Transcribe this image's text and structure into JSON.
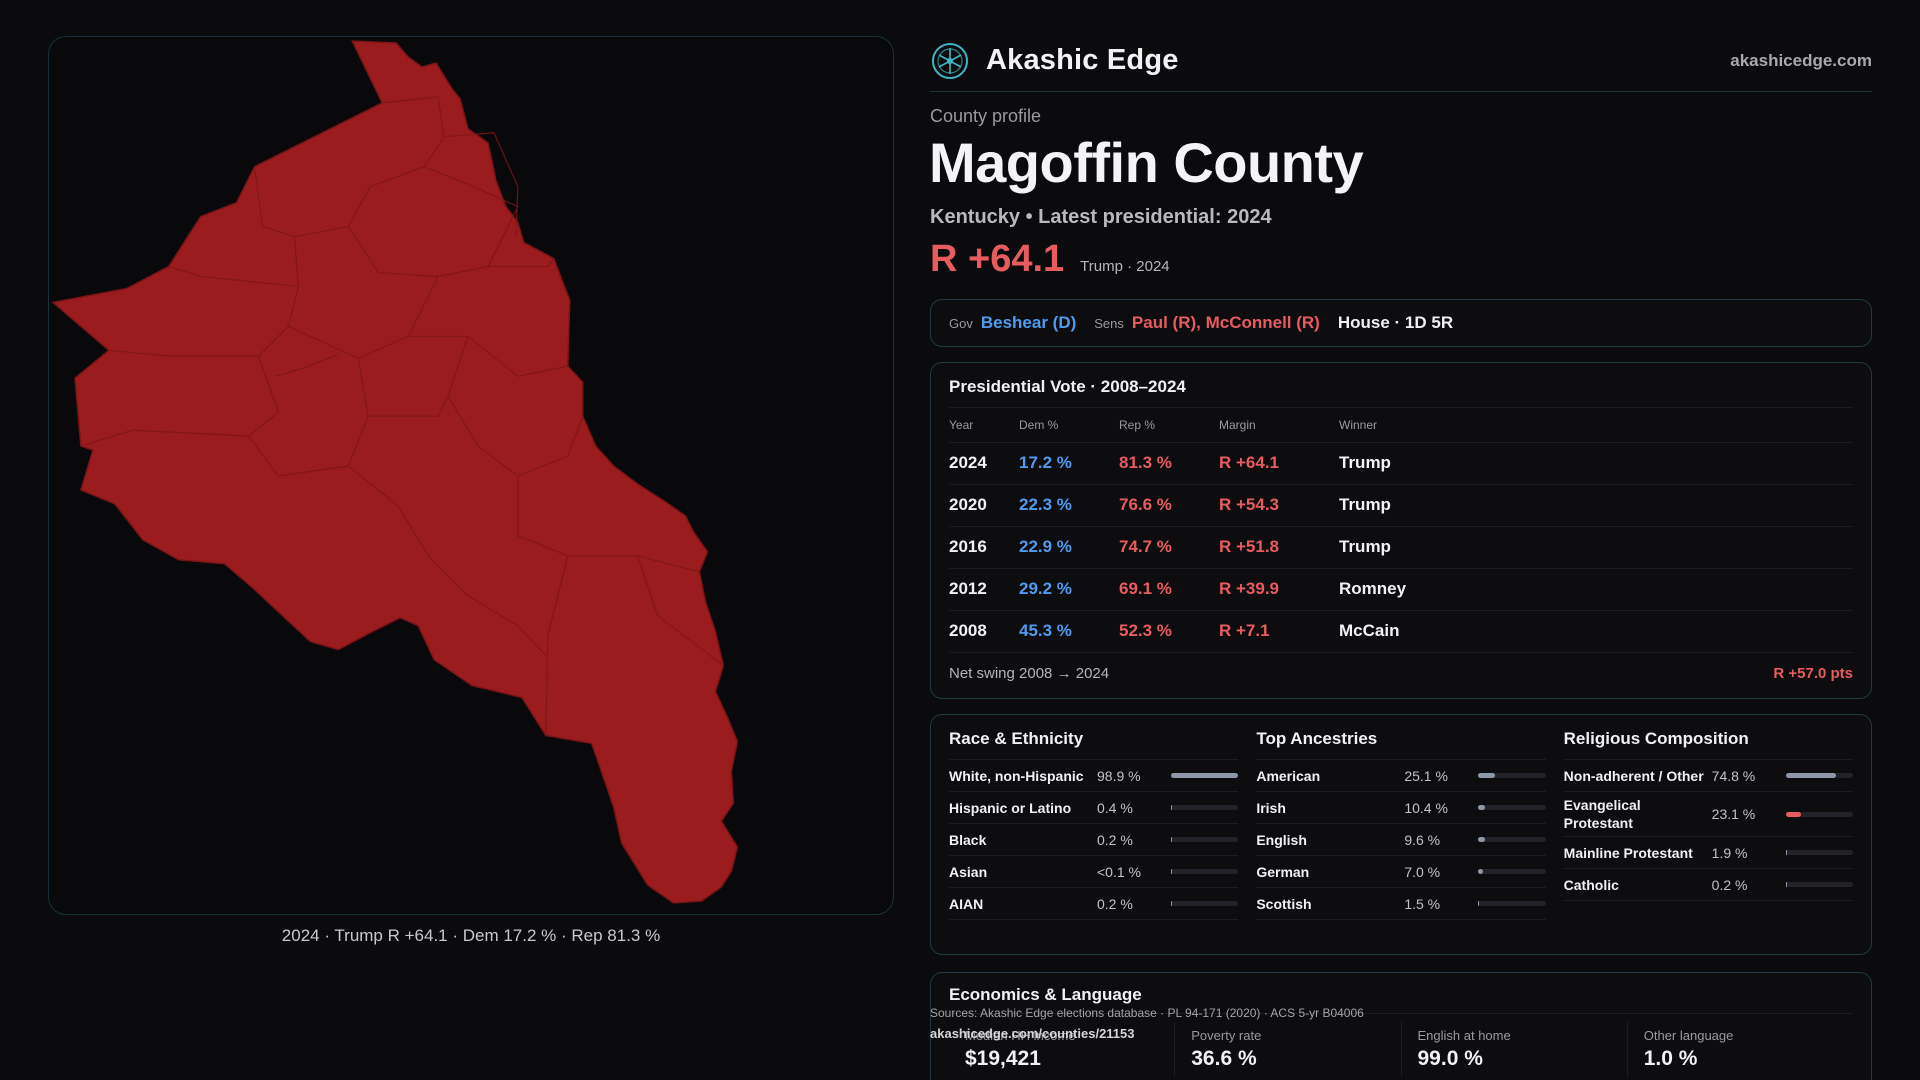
{
  "map": {
    "caption": "2024 · Trump R +64.1 · Dem 17.2 % · Rep 81.3 %",
    "fill_color": "#9b1c1f",
    "border_color": "#7a1416"
  },
  "brand": {
    "name": "Akashic Edge",
    "domain": "akashicedge.com",
    "logo_icon": "akashic-edge-logo-icon"
  },
  "profile": {
    "kicker": "County profile",
    "title": "Magoffin County",
    "subtitle": "Kentucky • Latest presidential: 2024",
    "margin": "R +64.1",
    "margin_detail": "Trump · 2024"
  },
  "officials": {
    "gov_label": "Gov",
    "gov_value": "Beshear (D)",
    "sens_label": "Sens",
    "sens_value": "Paul (R), McConnell (R)",
    "house": "House · 1D 5R"
  },
  "presidential": {
    "title": "Presidential Vote · 2008–2024",
    "columns": [
      "Year",
      "Dem %",
      "Rep %",
      "Margin",
      "Winner"
    ],
    "rows": [
      {
        "year": "2024",
        "dem": "17.2 %",
        "rep": "81.3 %",
        "margin": "R +64.1",
        "winner": "Trump"
      },
      {
        "year": "2020",
        "dem": "22.3 %",
        "rep": "76.6 %",
        "margin": "R +54.3",
        "winner": "Trump"
      },
      {
        "year": "2016",
        "dem": "22.9 %",
        "rep": "74.7 %",
        "margin": "R +51.8",
        "winner": "Trump"
      },
      {
        "year": "2012",
        "dem": "29.2 %",
        "rep": "69.1 %",
        "margin": "R +39.9",
        "winner": "Romney"
      },
      {
        "year": "2008",
        "dem": "45.3 %",
        "rep": "52.3 %",
        "margin": "R +7.1",
        "winner": "McCain"
      }
    ],
    "swing_label": "Net swing 2008 → 2024",
    "swing_value": "R +57.0 pts"
  },
  "race": {
    "title": "Race & Ethnicity",
    "rows": [
      {
        "name": "White, non-Hispanic",
        "pct": "98.9 %",
        "share": 0.989
      },
      {
        "name": "Hispanic or Latino",
        "pct": "0.4 %",
        "share": 0.004
      },
      {
        "name": "Black",
        "pct": "0.2 %",
        "share": 0.002
      },
      {
        "name": "Asian",
        "pct": "<0.1 %",
        "share": 0.0005
      },
      {
        "name": "AIAN",
        "pct": "0.2 %",
        "share": 0.002
      }
    ]
  },
  "ancestry": {
    "title": "Top Ancestries",
    "rows": [
      {
        "name": "American",
        "pct": "25.1 %",
        "share": 0.251
      },
      {
        "name": "Irish",
        "pct": "10.4 %",
        "share": 0.104
      },
      {
        "name": "English",
        "pct": "9.6 %",
        "share": 0.096
      },
      {
        "name": "German",
        "pct": "7.0 %",
        "share": 0.07
      },
      {
        "name": "Scottish",
        "pct": "1.5 %",
        "share": 0.015
      }
    ]
  },
  "religion": {
    "title": "Religious Composition",
    "rows": [
      {
        "name": "Non-adherent / Other",
        "pct": "74.8 %",
        "share": 0.748,
        "color": "#8f98a8"
      },
      {
        "name": "Evangelical Protestant",
        "pct": "23.1 %",
        "share": 0.231,
        "color": "#e85b5f"
      },
      {
        "name": "Mainline Protestant",
        "pct": "1.9 %",
        "share": 0.019,
        "color": "#8f98a8"
      },
      {
        "name": "Catholic",
        "pct": "0.2 %",
        "share": 0.002,
        "color": "#8f98a8"
      }
    ]
  },
  "economics": {
    "title": "Economics & Language",
    "cells": [
      {
        "label": "Median HH income",
        "value": "$19,421"
      },
      {
        "label": "Poverty rate",
        "value": "36.6 %"
      },
      {
        "label": "English at home",
        "value": "99.0 %"
      },
      {
        "label": "Other language",
        "value": "1.0 %"
      }
    ]
  },
  "footer": {
    "sources": "Sources: Akashic Edge elections database · PL 94-171 (2020) · ACS 5-yr B04006",
    "permalink": "akashicedge.com/counties/21153"
  },
  "colors": {
    "dem": "#4f9bf0",
    "rep": "#e85b5f",
    "accent_border": "#1f3a40"
  }
}
